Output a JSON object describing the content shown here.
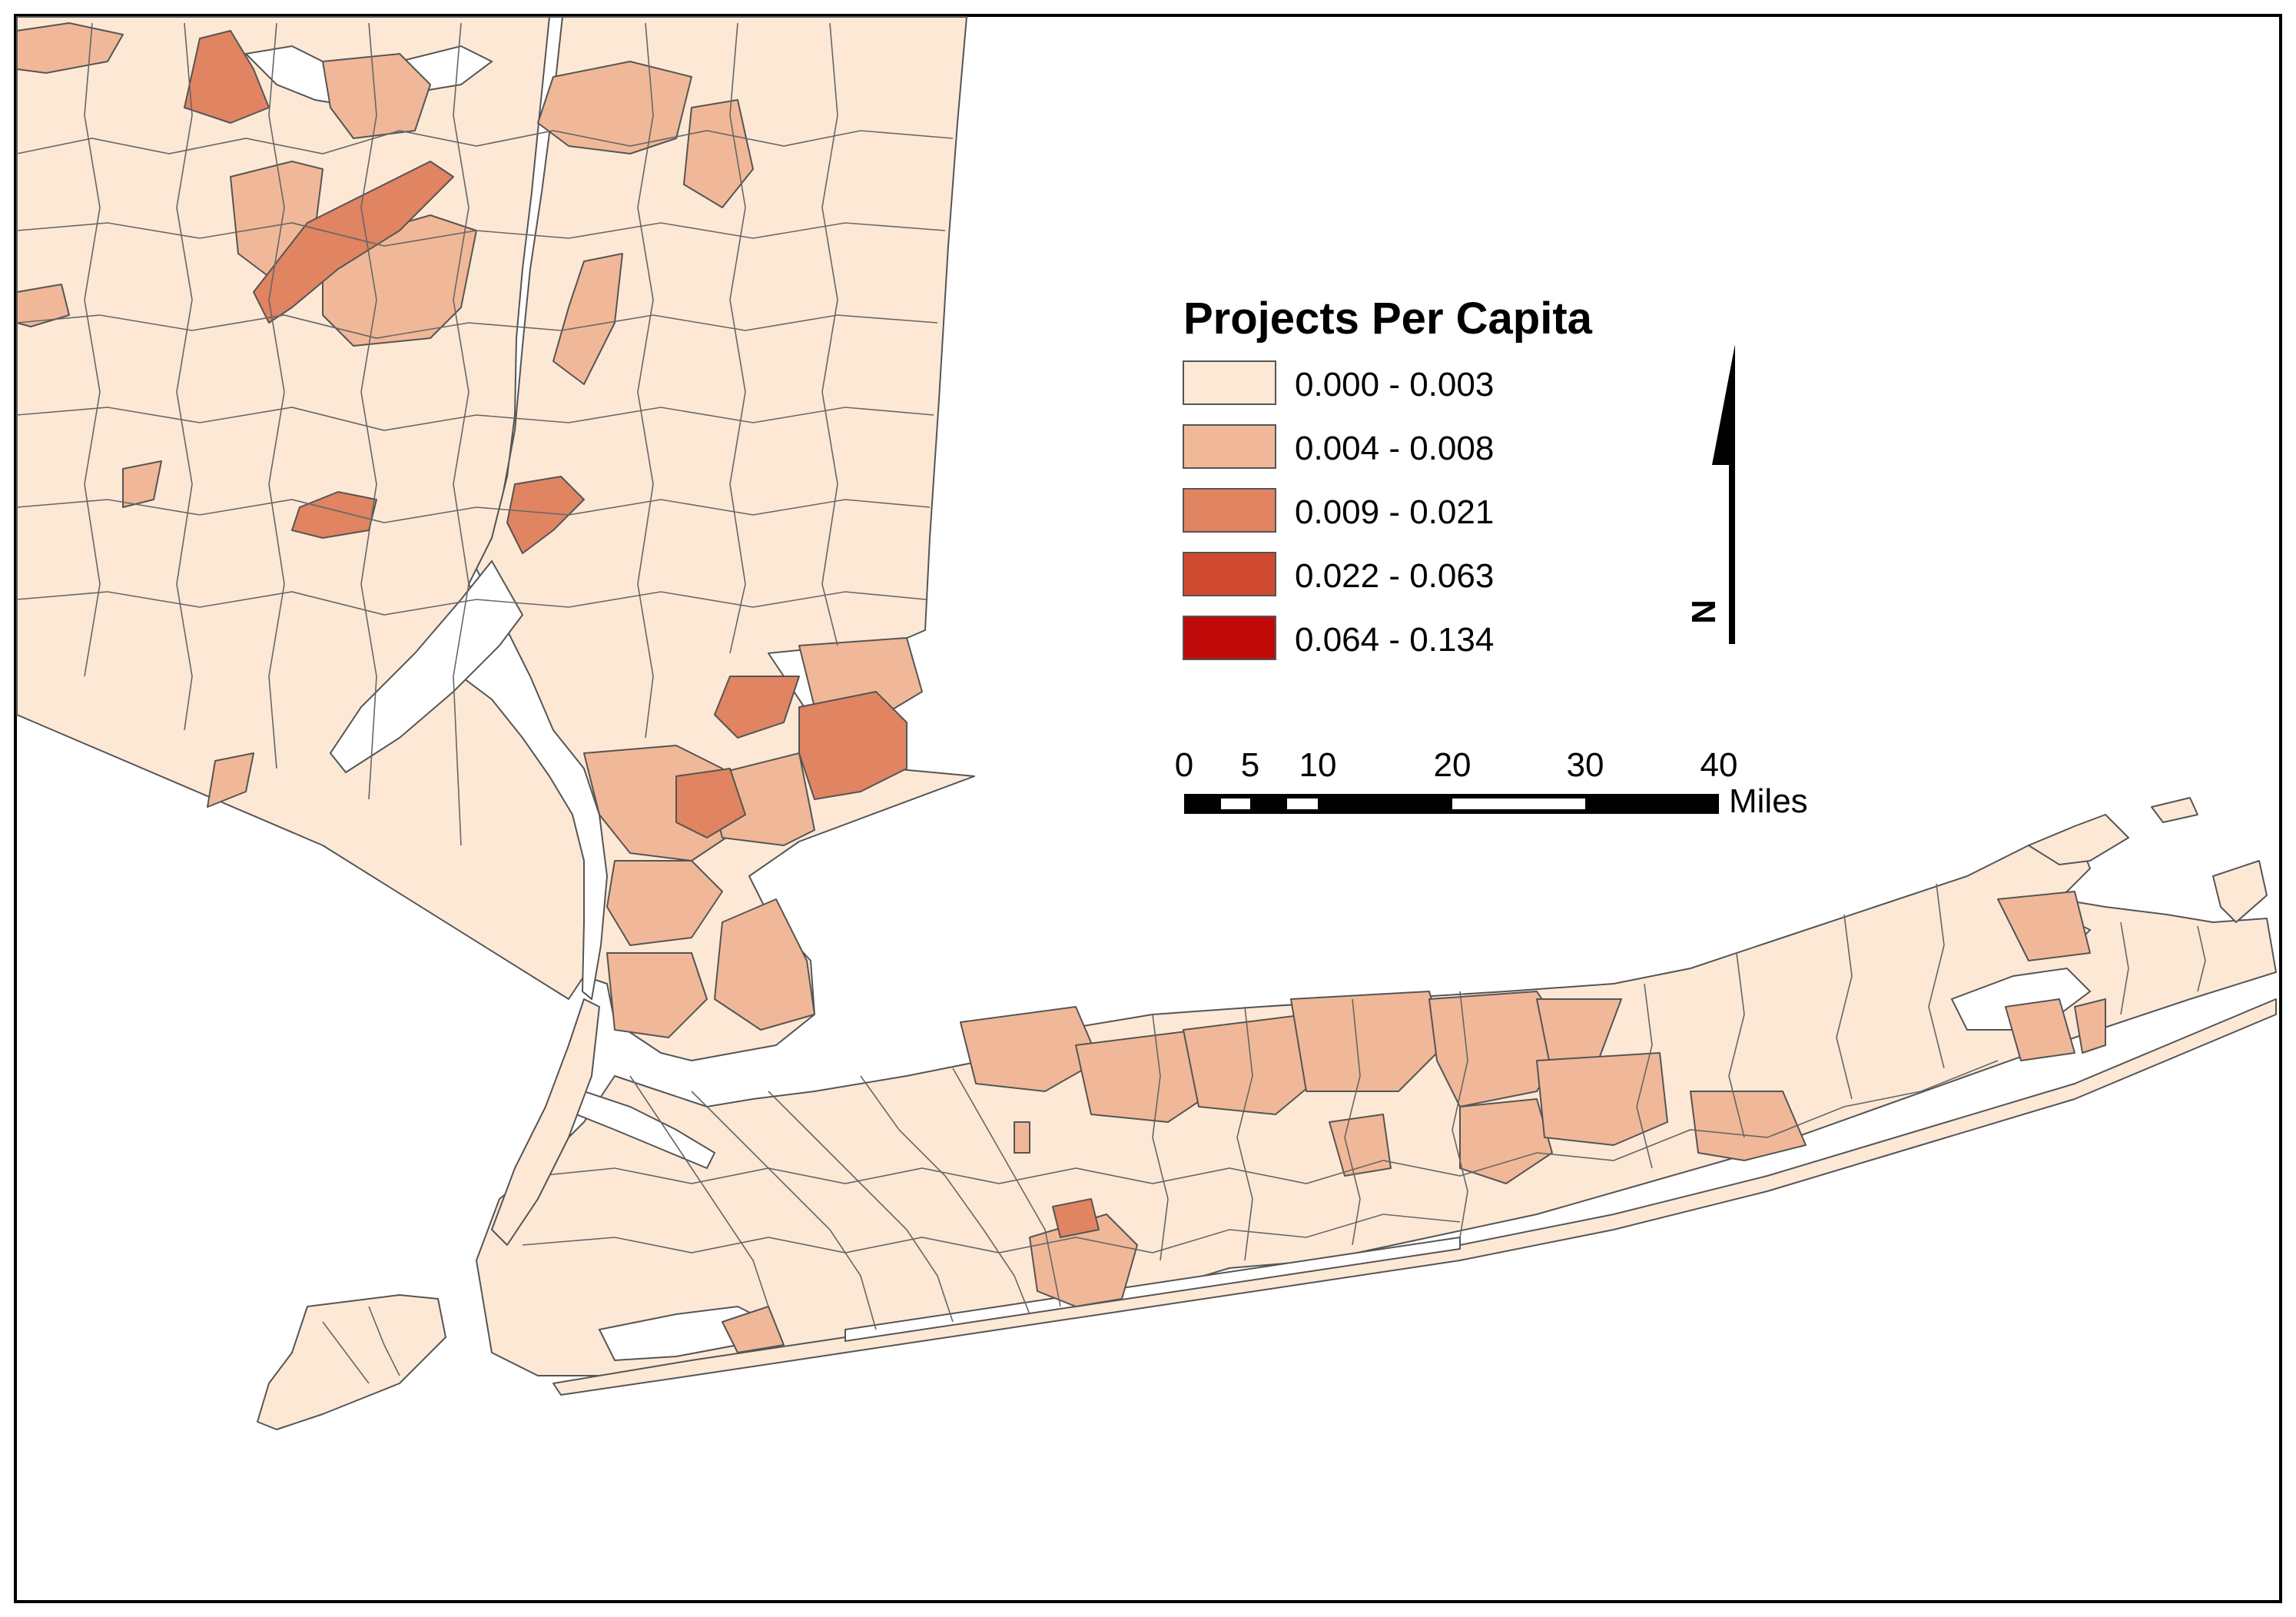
{
  "legend": {
    "title": "Projects Per Capita",
    "classes": [
      {
        "label": "0.000 - 0.003",
        "color": "#FDE8D6"
      },
      {
        "label": "0.004 - 0.008",
        "color": "#F0B898"
      },
      {
        "label": "0.009 - 0.021",
        "color": "#E08462"
      },
      {
        "label": "0.022 - 0.063",
        "color": "#D04A30"
      },
      {
        "label": "0.064 - 0.134",
        "color": "#C00A0A"
      }
    ]
  },
  "scale_bar": {
    "ticks": [
      "0",
      "5",
      "10",
      "20",
      "30",
      "40"
    ],
    "unit": "Miles"
  },
  "north_arrow": {
    "label": "N",
    "icon": "north-arrow-icon"
  },
  "colors": {
    "water": "#FFFFFF",
    "boundary": "#555555",
    "frame": "#000000"
  }
}
